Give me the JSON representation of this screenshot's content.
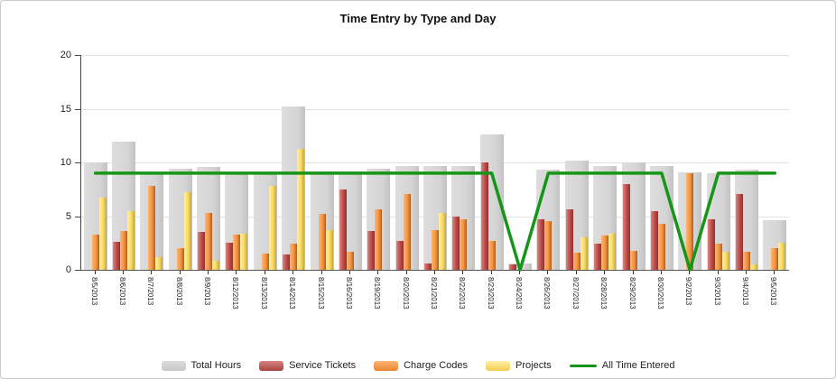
{
  "window": {
    "background": "#ffffff",
    "border_color": "#c9c9c9"
  },
  "chart_data": {
    "type": "bar",
    "title": "Time Entry by Type and Day",
    "categories": [
      "8/5/2013",
      "8/6/2013",
      "8/7/2013",
      "8/8/2013",
      "8/9/2013",
      "8/12/2013",
      "8/13/2013",
      "8/14/2013",
      "8/15/2013",
      "8/16/2013",
      "8/19/2013",
      "8/20/2013",
      "8/21/2013",
      "8/22/2013",
      "8/23/2013",
      "8/24/2013",
      "8/26/2013",
      "8/27/2013",
      "8/28/2013",
      "8/29/2013",
      "8/30/2013",
      "9/2/2013",
      "9/3/2013",
      "9/4/2013",
      "9/5/2013"
    ],
    "series": [
      {
        "name": "Total Hours",
        "kind": "bar-background",
        "color": "#d4d4d4",
        "values": [
          10.0,
          11.9,
          9.0,
          9.4,
          9.6,
          9.0,
          9.0,
          15.2,
          9.2,
          9.2,
          9.4,
          9.7,
          9.7,
          9.7,
          12.6,
          0.6,
          9.3,
          10.2,
          9.7,
          10.0,
          9.7,
          9.1,
          9.0,
          9.3,
          4.6
        ]
      },
      {
        "name": "Service Tickets",
        "kind": "bar",
        "color": "#c0504d",
        "values": [
          0,
          2.6,
          0,
          0,
          3.5,
          2.5,
          0,
          1.4,
          0,
          7.5,
          3.6,
          2.7,
          0.6,
          5.0,
          10.0,
          0.5,
          4.7,
          5.6,
          2.4,
          8.0,
          5.5,
          0,
          4.7,
          7.1,
          0
        ]
      },
      {
        "name": "Charge Codes",
        "kind": "bar",
        "color": "#f79646",
        "values": [
          3.3,
          3.6,
          7.8,
          2.0,
          5.3,
          3.3,
          1.5,
          2.4,
          5.2,
          1.7,
          5.6,
          7.1,
          3.7,
          4.7,
          2.7,
          0,
          4.5,
          1.6,
          3.2,
          1.8,
          4.3,
          9.0,
          2.4,
          1.7,
          2.0
        ]
      },
      {
        "name": "Projects",
        "kind": "bar",
        "color": "#fbd95f",
        "values": [
          6.7,
          5.5,
          1.2,
          7.2,
          0.8,
          3.4,
          7.8,
          11.3,
          3.7,
          0,
          0,
          0,
          5.3,
          0,
          0,
          0,
          0,
          3.0,
          3.4,
          0,
          0,
          0,
          1.7,
          0.5,
          2.5
        ]
      },
      {
        "name": "All Time Entered",
        "kind": "line",
        "color": "#179517",
        "values": [
          9,
          9,
          9,
          9,
          9,
          9,
          9,
          9,
          9,
          9,
          9,
          9,
          9,
          9,
          9,
          0,
          9,
          9,
          9,
          9,
          9,
          0,
          9,
          9,
          9
        ]
      }
    ],
    "ylim": [
      0,
      20
    ],
    "yticks": [
      0,
      5,
      10,
      15,
      20
    ],
    "grid": "horizontal",
    "legend_position": "bottom"
  }
}
